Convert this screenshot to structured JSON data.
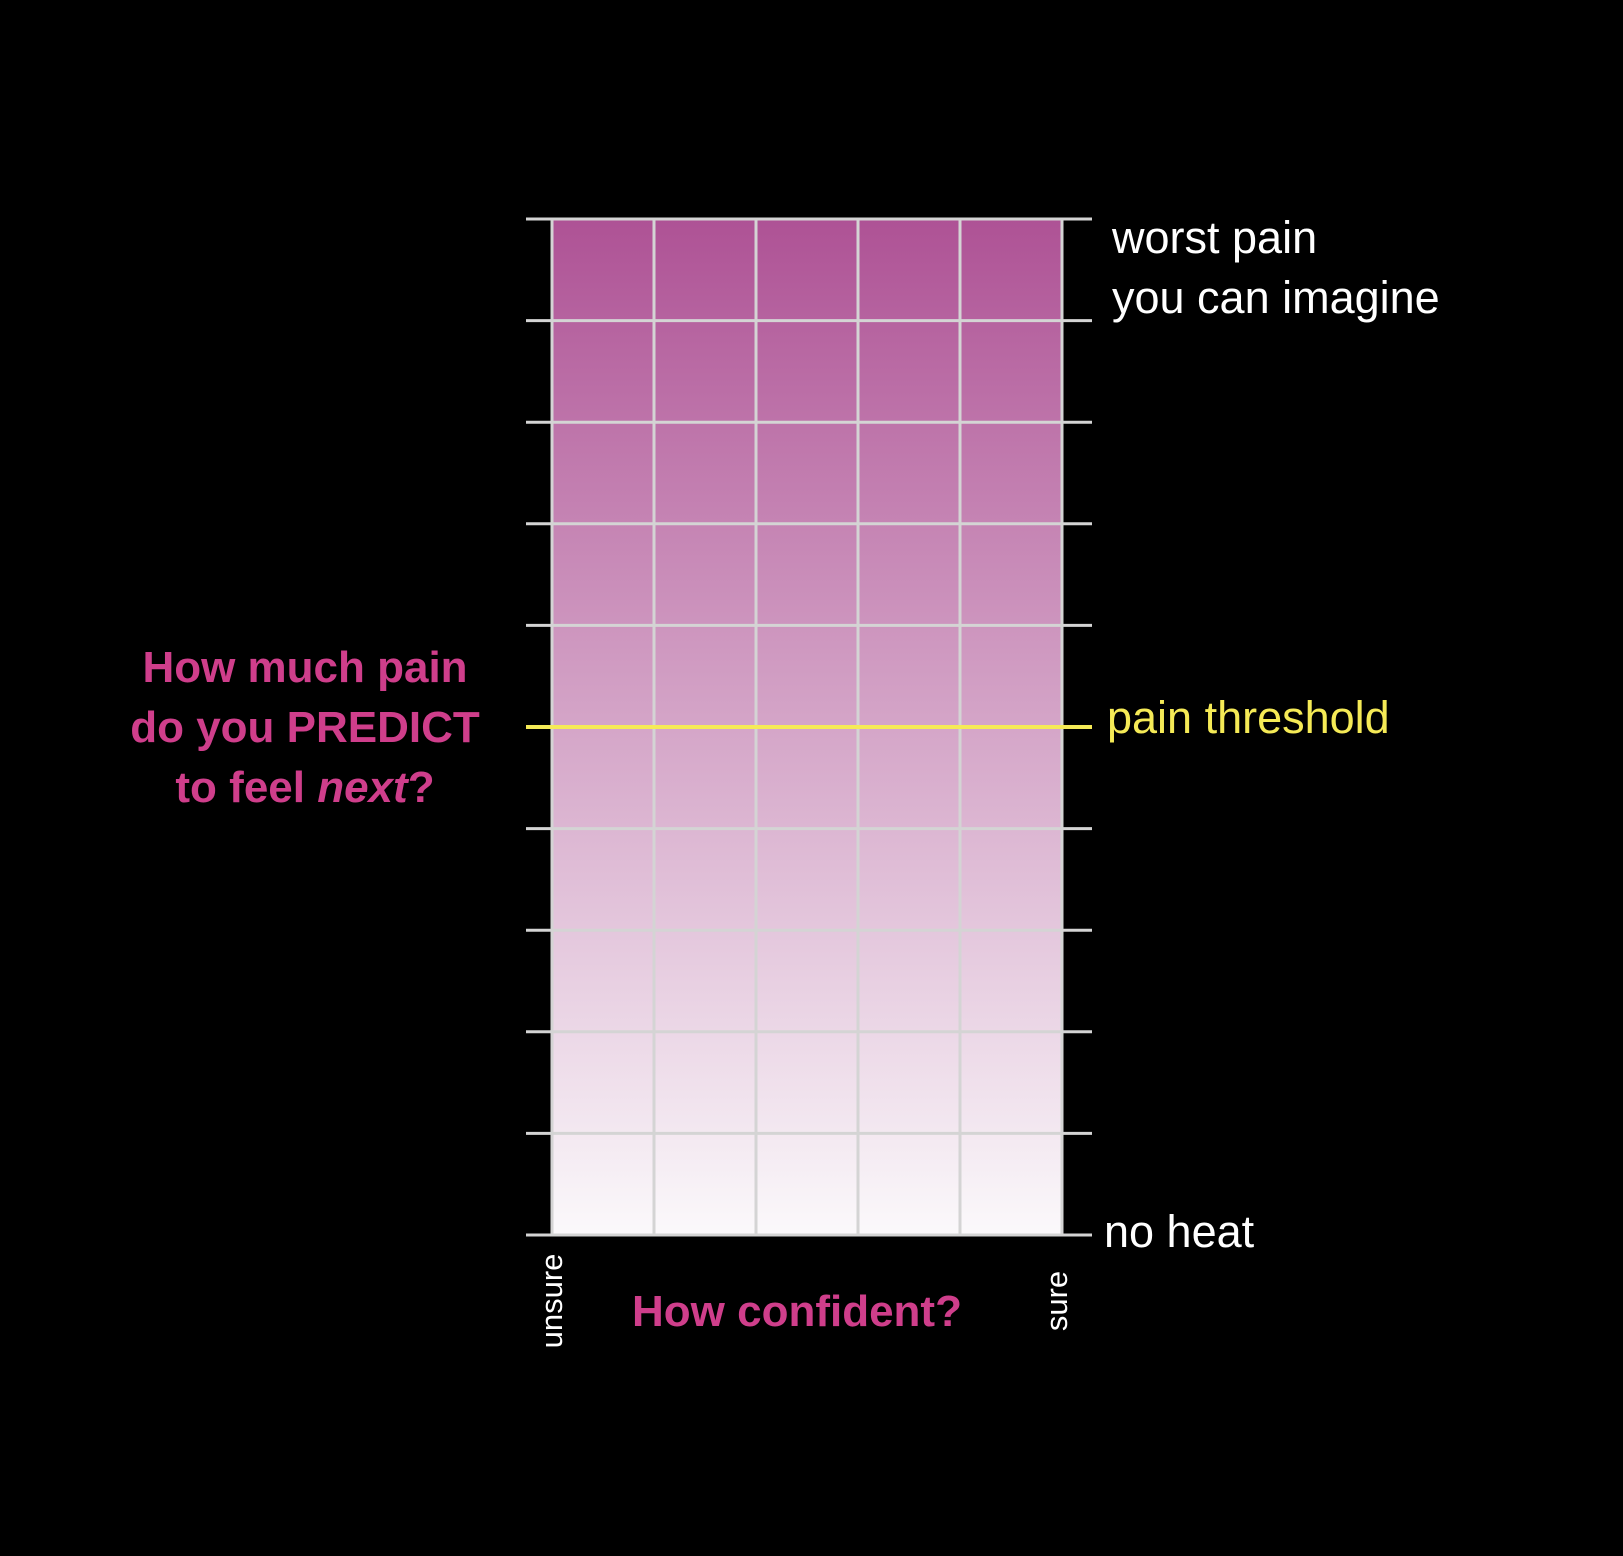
{
  "scale": {
    "rows": 10,
    "cols": 5,
    "top_label_line1": "worst pain",
    "top_label_line2": "you can imagine",
    "bottom_label": "no heat",
    "threshold_label": "pain threshold",
    "threshold_level": 0.5
  },
  "question": {
    "line1": "How much pain",
    "line2": "do you PREDICT",
    "line3_prefix": "to feel ",
    "line3_emphasis": "next",
    "line3_suffix": "?"
  },
  "x_axis": {
    "title": "How confident?",
    "left_label": "unsure",
    "right_label": "sure"
  },
  "colors": {
    "background": "#000000",
    "gradient_top": "#ae5295",
    "gradient_bottom": "#fbf9fb",
    "grid_line": "#d4d4d4",
    "threshold_line": "#f5ea56",
    "accent_text": "#cf3e8b",
    "label_text": "#ffffff"
  }
}
